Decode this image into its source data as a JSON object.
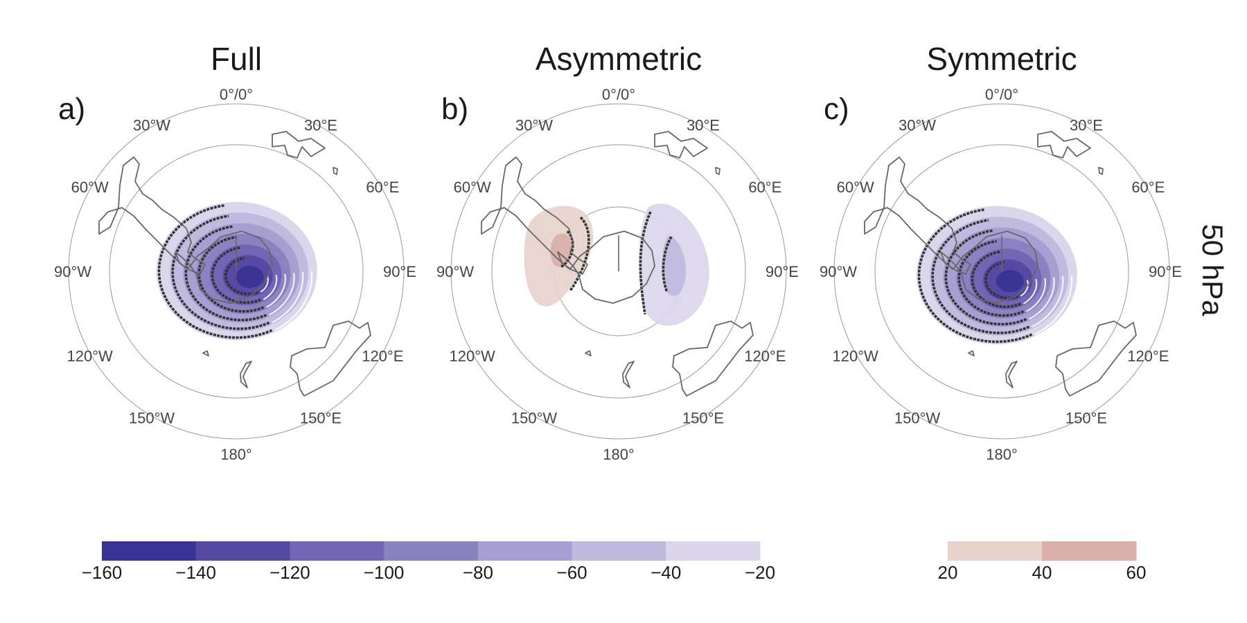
{
  "level_label": "50 hPa",
  "panels": [
    {
      "key": "full",
      "title": "Full",
      "label": "a)"
    },
    {
      "key": "asym",
      "title": "Asymmetric",
      "label": "b)"
    },
    {
      "key": "sym",
      "title": "Symmetric",
      "label": "c)"
    }
  ],
  "lon_labels": {
    "lon_0": "0°/0°",
    "lon_30e": "30°E",
    "lon_60e": "60°E",
    "lon_90e": "90°E",
    "lon_120e": "120°E",
    "lon_150e": "150°E",
    "lon_180": "180°",
    "lon_150w": "150°W",
    "lon_120w": "120°W",
    "lon_90w": "90°W",
    "lon_60w": "60°W",
    "lon_30w": "30°W"
  },
  "colorbars": {
    "negative": {
      "ticks": [
        "−160",
        "−140",
        "−120",
        "−100",
        "−80",
        "−60",
        "−40",
        "−20"
      ],
      "colors": [
        "#3a3494",
        "#5549a3",
        "#7265b4",
        "#8b82c2",
        "#a79fd2",
        "#c1badf",
        "#dbd6ec"
      ]
    },
    "positive": {
      "ticks": [
        "20",
        "40",
        "60"
      ],
      "colors": [
        "#e8d2cc",
        "#dbb0aa"
      ]
    }
  },
  "contour_levels": [
    -160,
    -140,
    -120,
    -100,
    -80,
    -60,
    -40,
    -20,
    20,
    40,
    60
  ]
}
